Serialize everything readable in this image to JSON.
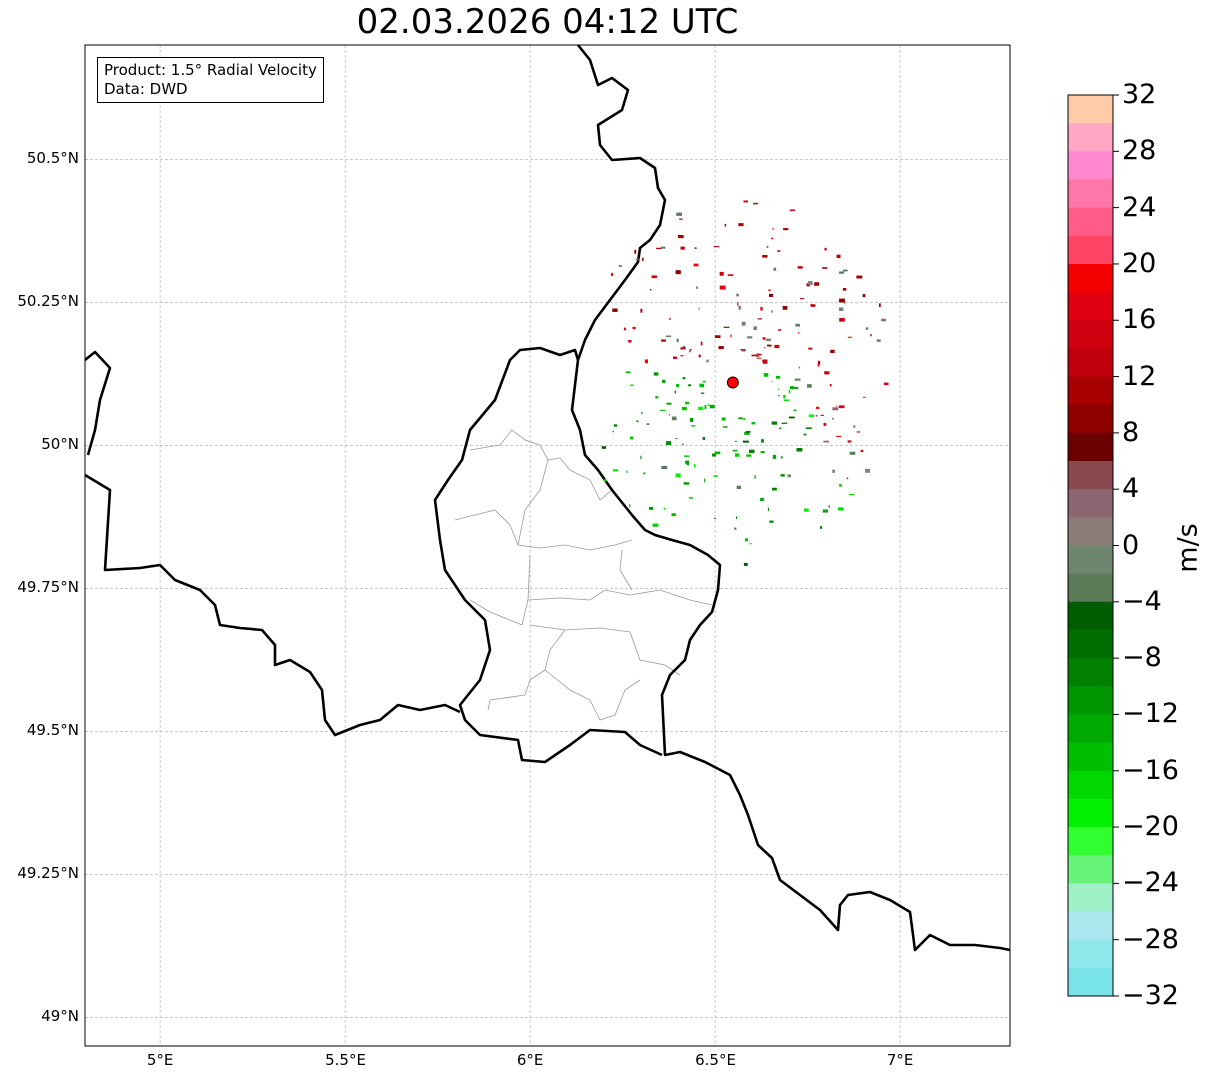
{
  "title": "02.03.2026 04:12 UTC",
  "info": {
    "line1": "Product: 1.5° Radial Velocity",
    "line2": "Data: DWD"
  },
  "map": {
    "extent_lon": [
      4.797,
      7.297
    ],
    "extent_lat": [
      48.95,
      50.7
    ],
    "lon_ticks": [
      {
        "v": 5,
        "label": "5°E"
      },
      {
        "v": 5.5,
        "label": "5.5°E"
      },
      {
        "v": 6,
        "label": "6°E"
      },
      {
        "v": 6.5,
        "label": "6.5°E"
      },
      {
        "v": 7,
        "label": "7°E"
      }
    ],
    "lat_ticks": [
      {
        "v": 50.5,
        "label": "50.5°N"
      },
      {
        "v": 50.25,
        "label": "50.25°N"
      },
      {
        "v": 50,
        "label": "50°N"
      },
      {
        "v": 49.75,
        "label": "49.75°N"
      },
      {
        "v": 49.5,
        "label": "49.5°N"
      },
      {
        "v": 49.25,
        "label": "49.25°N"
      },
      {
        "v": 49,
        "label": "49°N"
      }
    ],
    "radar_site": {
      "lon": 6.548,
      "lat": 50.11,
      "color": "#ff0000"
    }
  },
  "colorbar": {
    "label": "m/s",
    "min": -32,
    "max": 32,
    "ticks": [
      "32",
      "28",
      "24",
      "20",
      "16",
      "12",
      "8",
      "4",
      "0",
      "−4",
      "−8",
      "−12",
      "−16",
      "−20",
      "−24",
      "−28",
      "−32"
    ],
    "colors_top_to_bottom": [
      "#ffcba8",
      "#ffa8c4",
      "#ff88d0",
      "#ff77a8",
      "#ff5d88",
      "#ff4466",
      "#f50000",
      "#e00010",
      "#d10010",
      "#c0000c",
      "#a80000",
      "#8e0000",
      "#6c0000",
      "#8a4850",
      "#8b6570",
      "#8b7c78",
      "#6e8670",
      "#5a7a58",
      "#005e00",
      "#006f00",
      "#008000",
      "#009600",
      "#00aa00",
      "#00bf00",
      "#00d800",
      "#00f200",
      "#30ff30",
      "#66f57a",
      "#a0f0c8",
      "#a8e8ee",
      "#90e8ec",
      "#78e4e8"
    ]
  }
}
